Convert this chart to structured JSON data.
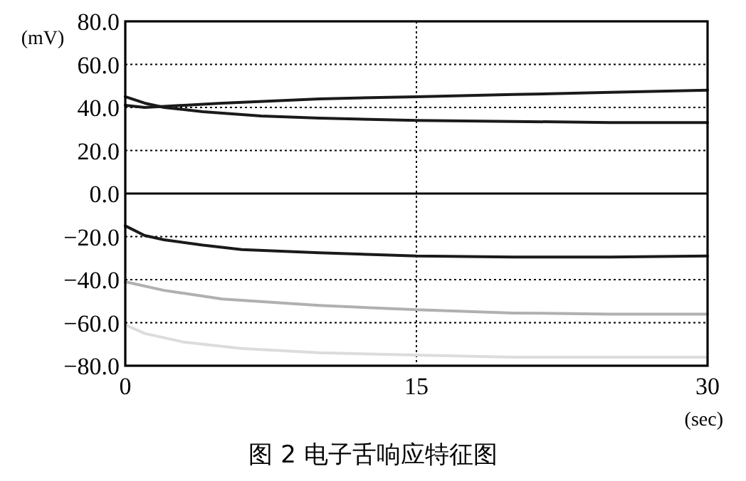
{
  "chart_data": {
    "type": "line",
    "title": "图 2  电子舌响应特征图",
    "xlabel": "(sec)",
    "ylabel": "(mV)",
    "xlim": [
      0,
      30
    ],
    "xticks": [
      0,
      15,
      30
    ],
    "ylim": [
      -80,
      80
    ],
    "yticks": [
      {
        "value": -80,
        "label": "−80.0"
      },
      {
        "value": -60,
        "label": "−60.0"
      },
      {
        "value": -40,
        "label": "−40.0"
      },
      {
        "value": -20,
        "label": "−20.0"
      },
      {
        "value": 0,
        "label": "0.0"
      },
      {
        "value": 20,
        "label": "20.0"
      },
      {
        "value": 40,
        "label": "40.0"
      },
      {
        "value": 60,
        "label": "60.0"
      },
      {
        "value": 80,
        "label": "80.0"
      }
    ],
    "grid": true,
    "line_style": "solid",
    "ref_lines": [
      {
        "axis": "y",
        "value": 0,
        "color": "#000000",
        "line_style": "solid"
      }
    ],
    "series": [
      {
        "color": "#1a1a1a",
        "x": [
          0,
          1,
          2,
          5,
          10,
          15,
          20,
          25,
          30
        ],
        "values": [
          41,
          40,
          40.5,
          42,
          44,
          45,
          46,
          47,
          48
        ]
      },
      {
        "color": "#1a1a1a",
        "x": [
          0,
          1,
          2,
          4,
          7,
          10,
          15,
          20,
          25,
          30
        ],
        "values": [
          45,
          42,
          40,
          38,
          36,
          35,
          34,
          33.5,
          33,
          33
        ]
      },
      {
        "color": "#1a1a1a",
        "x": [
          0,
          1,
          2,
          4,
          6,
          10,
          15,
          20,
          25,
          30
        ],
        "values": [
          -15,
          -19.5,
          -21.5,
          -24,
          -26,
          -27.5,
          -29,
          -29.5,
          -29.5,
          -29
        ]
      },
      {
        "color": "#b0b0b0",
        "x": [
          0,
          2,
          5,
          10,
          15,
          20,
          25,
          30
        ],
        "values": [
          -41,
          -45,
          -49,
          -52,
          -54,
          -55.5,
          -56,
          -56
        ]
      },
      {
        "color": "#dcdcdc",
        "x": [
          0,
          1,
          3,
          6,
          10,
          15,
          20,
          25,
          30
        ],
        "values": [
          -61,
          -65,
          -69,
          -72,
          -74,
          -75,
          -76,
          -76,
          -76
        ]
      }
    ]
  }
}
